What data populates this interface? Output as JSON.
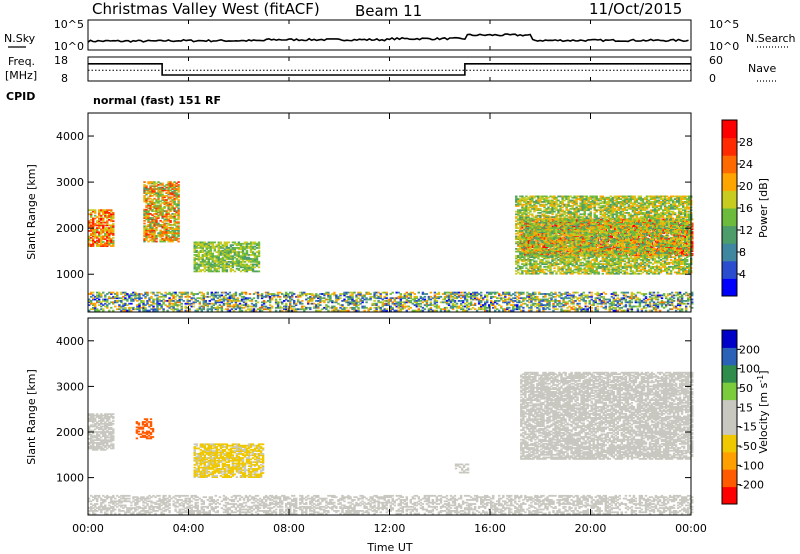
{
  "header": {
    "title": "Christmas Valley West (fitACF)",
    "beam": "Beam 11",
    "date": "11/Oct/2015",
    "mode": "normal (fast) 151 RF"
  },
  "left_labels": {
    "nsky": "N.Sky",
    "freq": "Freq.",
    "freq_unit": "[MHz]",
    "cpid": "CPID"
  },
  "right_labels": {
    "nsearch": "N.Search",
    "nave": "Nave"
  },
  "xaxis": {
    "label": "Time UT",
    "ticks": [
      "00:00",
      "04:00",
      "08:00",
      "12:00",
      "16:00",
      "20:00",
      "00:00"
    ]
  },
  "colorbars": {
    "power": {
      "label": "Power [dB]",
      "ticks": [
        "4",
        "8",
        "12",
        "16",
        "20",
        "24",
        "28"
      ]
    },
    "velocity": {
      "label": "Velocity [m s",
      "label_sup": "-1",
      "label_end": "]",
      "ticks": [
        "200",
        "100",
        "50",
        "15",
        "-15",
        "-50",
        "-100",
        "-200"
      ]
    }
  },
  "chart_data": [
    {
      "type": "line",
      "name": "noise-panel",
      "left_axis": {
        "label": "N.Sky",
        "ticks": [
          "10^5",
          "10^0"
        ]
      },
      "right_axis": {
        "label": "N.Search",
        "ticks": [
          "10^5",
          "10^0"
        ]
      },
      "series": [
        {
          "style": "solid",
          "x_hours": [
            0,
            3,
            7,
            12,
            15,
            17.6,
            24
          ],
          "level": [
            0.35,
            0.38,
            0.45,
            0.52,
            0.78,
            0.4,
            0.38
          ]
        }
      ]
    },
    {
      "type": "line",
      "name": "freq-nave-panel",
      "left_axis": {
        "label": "Freq. [MHz]",
        "ticks": [
          "18",
          "8"
        ],
        "ylim": [
          8,
          18
        ]
      },
      "right_axis": {
        "label": "Nave",
        "ticks": [
          "60",
          "0"
        ],
        "ylim": [
          0,
          60
        ]
      },
      "series": [
        {
          "name": "Freq.",
          "style": "solid",
          "x_hours": [
            0,
            2.95,
            2.95,
            15,
            15,
            24
          ],
          "values": [
            15.6,
            15.6,
            10.0,
            10.0,
            15.6,
            15.6
          ]
        },
        {
          "name": "Nave",
          "style": "dotted",
          "x_hours": [
            0,
            24
          ],
          "values": [
            26,
            26
          ]
        }
      ]
    },
    {
      "type": "heatmap",
      "name": "power-panel",
      "xlabel": "Time UT",
      "ylabel": "Slant Range [km]",
      "xlim_hours": [
        0,
        24
      ],
      "ylim_km": [
        180,
        4500
      ],
      "yticks": [
        1000,
        2000,
        3000,
        4000
      ],
      "colorbar": {
        "label": "Power [dB]",
        "range": [
          0,
          30
        ],
        "ticks": [
          4,
          8,
          12,
          16,
          20,
          24,
          28
        ]
      },
      "regions": [
        {
          "t": [
            0,
            1.0
          ],
          "r": [
            1600,
            2400
          ],
          "power": [
            14,
            28
          ]
        },
        {
          "t": [
            2.2,
            3.6
          ],
          "r": [
            1700,
            3000
          ],
          "power": [
            10,
            26
          ]
        },
        {
          "t": [
            4.2,
            6.8
          ],
          "r": [
            1050,
            1700
          ],
          "power": [
            10,
            18
          ]
        },
        {
          "t": [
            17.2,
            24
          ],
          "r": [
            1400,
            2200
          ],
          "power": [
            20,
            30
          ]
        },
        {
          "t": [
            17.0,
            24
          ],
          "r": [
            1000,
            2700
          ],
          "power": [
            10,
            20
          ]
        },
        {
          "t": [
            0,
            24
          ],
          "r": [
            200,
            600
          ],
          "power": [
            2,
            22
          ]
        }
      ]
    },
    {
      "type": "heatmap",
      "name": "velocity-panel",
      "xlabel": "Time UT",
      "ylabel": "Slant Range [km]",
      "xlim_hours": [
        0,
        24
      ],
      "ylim_km": [
        180,
        4500
      ],
      "yticks": [
        1000,
        2000,
        3000,
        4000
      ],
      "colorbar": {
        "label": "Velocity [m s-1]",
        "range": [
          -250,
          250
        ],
        "ticks": [
          200,
          100,
          50,
          15,
          -15,
          -50,
          -100,
          -200
        ]
      },
      "regions": [
        {
          "t": [
            0,
            1.0
          ],
          "r": [
            1600,
            2400
          ],
          "velocity": [
            -10,
            10
          ]
        },
        {
          "t": [
            1.9,
            2.6
          ],
          "r": [
            1850,
            2300
          ],
          "velocity": [
            -200,
            -150
          ]
        },
        {
          "t": [
            4.2,
            7.0
          ],
          "r": [
            1000,
            1750
          ],
          "velocity": [
            -80,
            -40
          ]
        },
        {
          "t": [
            17.2,
            24
          ],
          "r": [
            1400,
            3300
          ],
          "velocity": [
            -12,
            12
          ]
        },
        {
          "t": [
            14.6,
            15.1
          ],
          "r": [
            1100,
            1300
          ],
          "velocity": [
            20,
            45
          ]
        },
        {
          "t": [
            0,
            24
          ],
          "r": [
            200,
            600
          ],
          "velocity": [
            -40,
            40
          ]
        }
      ]
    }
  ]
}
